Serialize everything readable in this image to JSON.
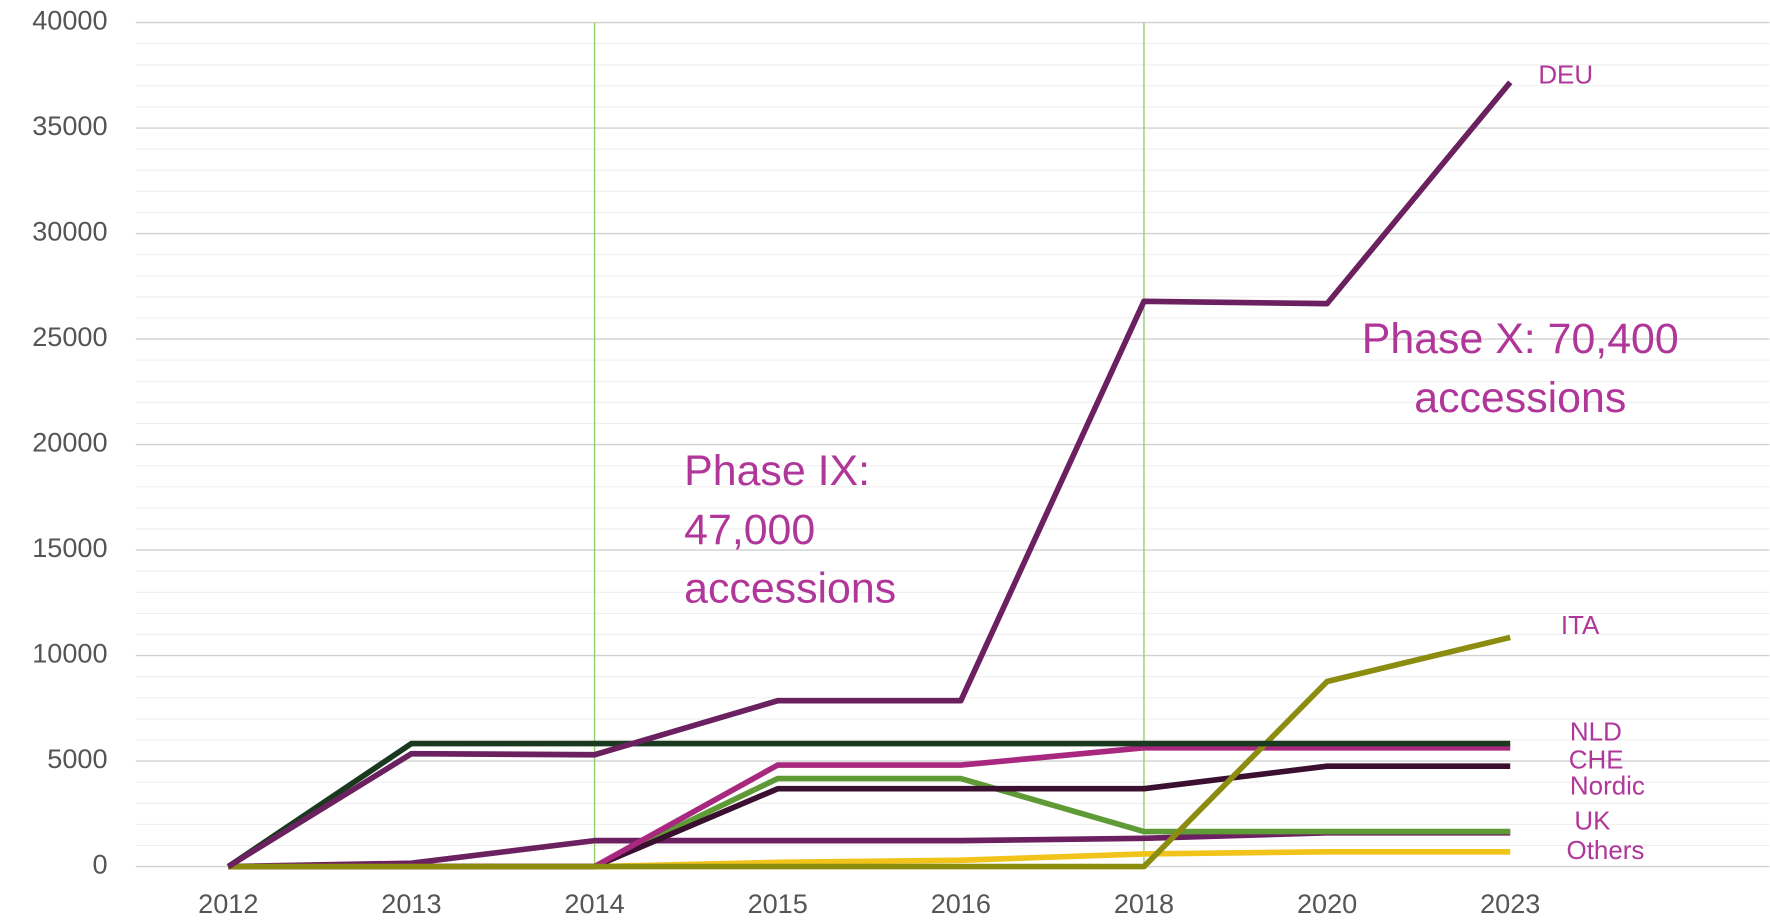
{
  "chart_data": {
    "type": "line",
    "categories": [
      "2012",
      "2013",
      "2014",
      "2015",
      "2016",
      "2018",
      "2020",
      "2023"
    ],
    "ylim": [
      0,
      40000
    ],
    "yticks": [
      0,
      5000,
      10000,
      15000,
      20000,
      25000,
      30000,
      35000,
      40000
    ],
    "minor_yticks": [
      1000,
      2000,
      3000,
      4000,
      6000,
      7000,
      8000,
      9000,
      11000,
      12000,
      13000,
      14000,
      16000,
      17000,
      18000,
      19000,
      21000,
      22000,
      23000,
      24000,
      26000,
      27000,
      28000,
      29000,
      31000,
      32000,
      33000,
      34000,
      36000,
      37000,
      38000,
      39000
    ],
    "grid": true,
    "phase_lines": [
      "2014",
      "2018"
    ],
    "annotations": [
      [
        "Phase IX:",
        "47,000",
        "accessions"
      ],
      [
        "Phase X: 70,400",
        "accessions"
      ]
    ],
    "series": [
      {
        "name": "Others",
        "color": "#f2c31a",
        "values": [
          0,
          0,
          0,
          200,
          300,
          600,
          700,
          700
        ]
      },
      {
        "color": "#6b2060",
        "values": [
          0,
          160,
          1230,
          1230,
          1230,
          1340,
          1600,
          1600
        ]
      },
      {
        "name": "UK",
        "color": "#5e9a35",
        "values": [
          0,
          0,
          0,
          4170,
          4170,
          1660,
          1660,
          1660
        ]
      },
      {
        "name": "Nordic",
        "color": "#3a0f30",
        "values": [
          0,
          0,
          0,
          3690,
          3690,
          3690,
          4760,
          4760
        ]
      },
      {
        "name": "CHE",
        "color": "#a8287f",
        "values": [
          0,
          0,
          0,
          4810,
          4810,
          5630,
          5630,
          5630
        ]
      },
      {
        "name": "ITA",
        "color": "#8c8c10",
        "values": [
          0,
          0,
          0,
          0,
          0,
          0,
          8770,
          10860
        ]
      },
      {
        "name": "NLD",
        "color": "#1a3a20",
        "values": [
          0,
          5830,
          5830,
          5830,
          5830,
          5830,
          5830,
          5830
        ]
      },
      {
        "name": "DEU",
        "color": "#6b2060",
        "values": [
          0,
          5350,
          5300,
          7860,
          7860,
          26790,
          26680,
          37170
        ]
      }
    ]
  }
}
